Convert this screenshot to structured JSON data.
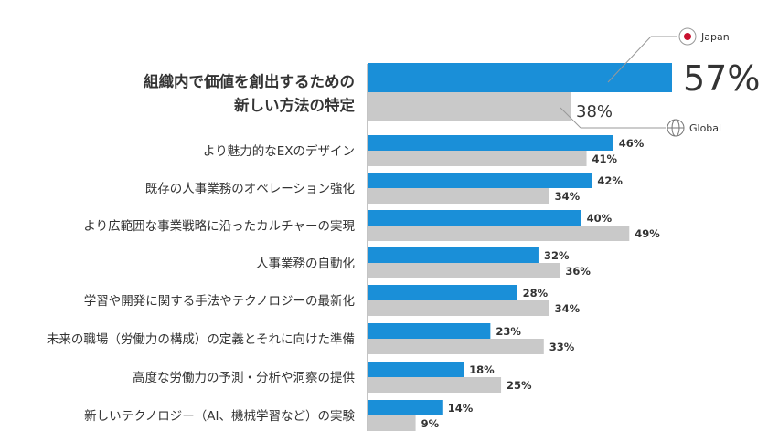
{
  "chart_data": {
    "type": "bar",
    "orientation": "horizontal",
    "categories": [
      "組織内で価値を創出するための\n新しい方法の特定",
      "より魅力的なEXのデザイン",
      "既存の人事業務のオペレーション強化",
      "より広範囲な事業戦略に沿ったカルチャーの実現",
      "人事業務の自動化",
      "学習や開発に関する手法やテクノロジーの最新化",
      "未来の職場（労働力の構成）の定義とそれに向けた準備",
      "高度な労働力の予測・分析や洞察の提供",
      "新しいテクノロジー（AI、機械学習など）の実験"
    ],
    "series": [
      {
        "name": "Japan",
        "values": [
          57,
          46,
          42,
          40,
          32,
          28,
          23,
          18,
          14
        ]
      },
      {
        "name": "Global",
        "values": [
          38,
          41,
          34,
          49,
          36,
          34,
          33,
          25,
          9
        ]
      }
    ],
    "value_suffix": "%",
    "xlim": [
      0,
      57
    ],
    "legend": {
      "japan": "Japan",
      "global": "Global"
    },
    "colors": {
      "japan": "#1a8fd8",
      "global": "#c9c9c9",
      "axis": "#888888",
      "japan_dot": "#c8102e"
    }
  }
}
